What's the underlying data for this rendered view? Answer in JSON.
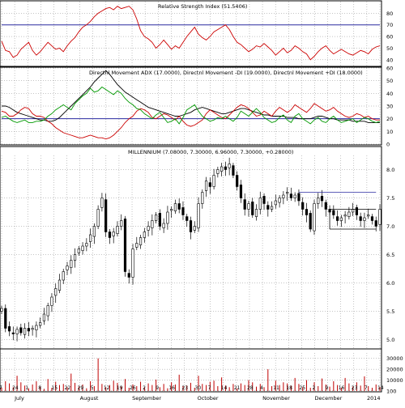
{
  "panels": {
    "rsi_title": "Relative Strength Index (51.5406)",
    "dmi_title": "Directnl Movement ADX (17.0000), Directnl Movement -DI (19.0000), Directnl Movement +DI (18.0000)",
    "price_title": "MILLENNIUM (7.08000, 7.30000, 6.96000, 7.30000, +0.28000)"
  },
  "colors": {
    "rsi_line": "#cc0000",
    "adx_line": "#000000",
    "minus_di_line": "#cc0000",
    "plus_di_line": "#009900",
    "ref_line": "#2a2aa0",
    "grid": "#8a8a8a",
    "volume_bar": "#c00000",
    "candle_up": "#ffffff",
    "candle_down": "#000000"
  },
  "chart_data": [
    {
      "type": "line",
      "panel": "rsi",
      "title": "Relative Strength Index (51.5406)",
      "ylim": [
        35,
        90
      ],
      "yticks": [
        "80",
        "70",
        "60",
        "50",
        "40"
      ],
      "reference_line": 70,
      "series": [
        {
          "values": [
            56,
            48,
            47,
            42,
            44,
            49,
            52,
            55,
            48,
            44,
            47,
            51,
            55,
            52,
            49,
            50,
            47,
            52,
            56,
            59,
            64,
            68,
            70,
            73,
            77,
            80,
            82,
            84,
            85,
            83,
            86,
            84,
            85,
            86,
            83,
            75,
            65,
            60,
            58,
            55,
            50,
            53,
            57,
            53,
            49,
            52,
            50,
            55,
            60,
            64,
            68,
            62,
            59,
            57,
            60,
            64,
            66,
            68,
            70,
            66,
            60,
            55,
            53,
            50,
            47,
            49,
            52,
            51,
            54,
            51,
            48,
            44,
            47,
            50,
            46,
            48,
            52,
            50,
            47,
            45,
            40,
            43,
            47,
            50,
            52,
            48,
            45,
            47,
            49,
            47,
            45,
            44,
            46,
            48,
            47,
            45,
            49,
            51,
            52
          ]
        }
      ],
      "grid": true
    },
    {
      "type": "line",
      "panel": "dmi",
      "title": "Directnl Movement ADX (17.0000), Directnl Movement -DI (19.0000), Directnl Movement +DI (18.0000)",
      "ylim": [
        0,
        60
      ],
      "yticks": [
        "60",
        "50",
        "40",
        "30",
        "20",
        "10",
        "0"
      ],
      "reference_line": 20,
      "series": [
        {
          "values": [
            30,
            30,
            29,
            27,
            25,
            24,
            23,
            22,
            21,
            20,
            19,
            19,
            18,
            18,
            19,
            21,
            24,
            27,
            30,
            33,
            36,
            39,
            42,
            45,
            49,
            52,
            55,
            58,
            55,
            51,
            47,
            44,
            41,
            39,
            37,
            35,
            33,
            31,
            29,
            28,
            27,
            26,
            25,
            24,
            23,
            22,
            22,
            23,
            24,
            25,
            27,
            28,
            29,
            28,
            27,
            26,
            25,
            24,
            24,
            25,
            26,
            27,
            28,
            28,
            27,
            26,
            25,
            24,
            23,
            23,
            22,
            22,
            22,
            22,
            21,
            21,
            21,
            20,
            20,
            20,
            20,
            21,
            22,
            22,
            21,
            20,
            20,
            19,
            19,
            19,
            19,
            18,
            18,
            18,
            18,
            17,
            17,
            17,
            17
          ]
        },
        {
          "values": [
            26,
            25,
            22,
            22,
            24,
            27,
            29,
            28,
            24,
            22,
            22,
            21,
            18,
            16,
            13,
            11,
            9,
            8,
            7,
            6,
            5,
            5,
            6,
            7,
            6,
            5,
            5,
            4,
            5,
            7,
            10,
            13,
            17,
            20,
            22,
            26,
            28,
            27,
            25,
            21,
            20,
            22,
            24,
            23,
            21,
            19,
            22,
            18,
            15,
            14,
            15,
            17,
            19,
            24,
            27,
            25,
            23,
            21,
            20,
            23,
            26,
            29,
            31,
            30,
            28,
            25,
            22,
            23,
            26,
            24,
            22,
            26,
            29,
            27,
            25,
            27,
            31,
            29,
            27,
            25,
            28,
            32,
            30,
            28,
            26,
            27,
            29,
            26,
            24,
            22,
            21,
            22,
            24,
            23,
            21,
            22,
            20,
            19,
            19
          ]
        },
        {
          "values": [
            21,
            22,
            20,
            18,
            17,
            18,
            19,
            17,
            17,
            18,
            18,
            19,
            22,
            24,
            27,
            29,
            31,
            29,
            27,
            32,
            35,
            38,
            40,
            44,
            41,
            42,
            45,
            43,
            41,
            39,
            42,
            40,
            36,
            33,
            31,
            28,
            27,
            24,
            22,
            20,
            23,
            25,
            21,
            17,
            18,
            20,
            16,
            21,
            27,
            29,
            31,
            26,
            22,
            20,
            18,
            19,
            21,
            20,
            22,
            20,
            18,
            21,
            26,
            24,
            22,
            25,
            28,
            25,
            21,
            19,
            17,
            18,
            21,
            23,
            19,
            17,
            22,
            24,
            20,
            18,
            16,
            19,
            21,
            18,
            17,
            20,
            22,
            19,
            17,
            18,
            19,
            20,
            17,
            19,
            21,
            20,
            18,
            17,
            18
          ]
        }
      ],
      "grid": true
    },
    {
      "type": "candlestick",
      "panel": "price",
      "title": "MILLENNIUM (7.08000, 7.30000, 6.96000, 7.30000, +0.28000)",
      "ylim": [
        4.85,
        8.25
      ],
      "yticks": [
        "8.0",
        "7.5",
        "7.0",
        "6.5",
        "6.0",
        "5.5",
        "5.0"
      ],
      "annotation_levels": [
        7.6,
        7.3,
        6.95
      ],
      "grid": true
    },
    {
      "type": "bar",
      "panel": "volume",
      "ylim": [
        0,
        35000
      ],
      "yticks": [
        "30000",
        "20000",
        "10000",
        "100"
      ],
      "values": [
        3000,
        9000,
        7000,
        3500,
        14000,
        8000,
        5000,
        2500,
        6000,
        9000,
        4000,
        2000,
        11000,
        3000,
        8500,
        5500,
        6500,
        3500,
        16000,
        7500,
        4000,
        6000,
        2500,
        9000,
        4500,
        30000,
        6500,
        3500,
        5500,
        9500,
        7500,
        4000,
        11000,
        3000,
        6000,
        4500,
        8500,
        3500,
        7000,
        5500,
        10500,
        3500,
        6500,
        2500,
        8000,
        6000,
        15000,
        4500,
        5000,
        7500,
        3000,
        14000,
        6500,
        5500,
        8500,
        9500,
        4500,
        12500,
        5000,
        3500,
        6500,
        2500,
        7000,
        5500,
        10000,
        8000,
        4000,
        6500,
        3500,
        20000,
        4500,
        9500,
        5500,
        8000,
        7000,
        5000,
        12000,
        6500,
        3500,
        10000,
        3000,
        8000,
        4500,
        11500,
        6000,
        4000,
        9000,
        5500,
        3000,
        12000,
        7000,
        4000,
        8000,
        5000,
        13500,
        4500,
        3000,
        6000,
        3500
      ],
      "grid": true
    }
  ],
  "x_axis": {
    "day_ticks": [
      "7",
      "24",
      "1",
      "8",
      "15",
      "22",
      "29",
      "5",
      "12",
      "19",
      "26",
      "2",
      "9",
      "16",
      "23",
      "30",
      "7",
      "14",
      "21",
      "28",
      "4",
      "11",
      "18",
      "25",
      "2",
      "9",
      "16",
      "23",
      "7",
      "14"
    ],
    "month_labels": [
      "July",
      "August",
      "September",
      "October",
      "November",
      "December",
      "2014"
    ]
  }
}
